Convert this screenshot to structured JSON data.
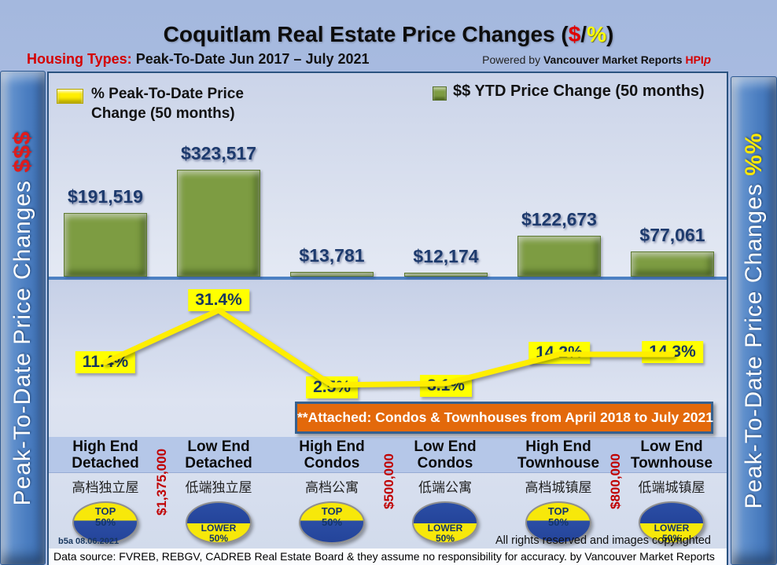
{
  "header": {
    "title_prefix": "Coquitlam Real Estate Price Changes (",
    "title_dollar": "$",
    "title_slash": "/",
    "title_percent": "%",
    "title_suffix": ")",
    "subtitle_label": "Housing Types:",
    "subtitle_text": " Peak-To-Date Jun 2017 – July 2021",
    "powered_prefix": "Powered by ",
    "powered_brand": "Vancouver Market Reports",
    "powered_hpi": "HPI"
  },
  "sidebars": {
    "left_text": "Peak-To-Date Price Changes ",
    "left_suffix": "$$$",
    "right_text": "Peak-To-Date  Price  Changes  ",
    "right_suffix": "%%"
  },
  "legend": {
    "percent_label": "% Peak-To-Date Price Change (50 months)",
    "dollar_label": "$$ YTD Price Change (50 months)"
  },
  "banner": "**Attached: Condos & Townhouses from April 2018 to July 2021",
  "columns": [
    {
      "name_line1": "High End",
      "name_line2": "Detached",
      "name_cn": "高档独立屋",
      "bar_label": "$191,519",
      "pct_label": "11.4%",
      "badge_line1": "TOP",
      "badge_line2": "50%",
      "badge_type": "top"
    },
    {
      "name_line1": "Low End",
      "name_line2": "Detached",
      "name_cn": "低端独立屋",
      "bar_label": "$323,517",
      "pct_label": "31.4%",
      "badge_line1": "LOWER",
      "badge_line2": "50%",
      "badge_type": "lower"
    },
    {
      "name_line1": "High End",
      "name_line2": "Condos",
      "name_cn": "高档公寓",
      "bar_label": "$13,781",
      "pct_label": "2.5%",
      "badge_line1": "TOP",
      "badge_line2": "50%",
      "badge_type": "top"
    },
    {
      "name_line1": "Low End",
      "name_line2": "Condos",
      "name_cn": "低端公寓",
      "bar_label": "$12,174",
      "pct_label": "3.1%",
      "badge_line1": "LOWER",
      "badge_line2": "50%",
      "badge_type": "lower"
    },
    {
      "name_line1": "High End",
      "name_line2": "Townhouse",
      "name_cn": "高档城镇屋",
      "bar_label": "$122,673",
      "pct_label": "14.2%",
      "badge_line1": "TOP",
      "badge_line2": "50%",
      "badge_type": "top"
    },
    {
      "name_line1": "Low End",
      "name_line2": "Townhouse",
      "name_cn": "低端城镇屋",
      "bar_label": "$77,061",
      "pct_label": "14.3%",
      "badge_line1": "LOWER",
      "badge_line2": "50%",
      "badge_type": "lower"
    }
  ],
  "dividers": [
    "$1,375,000",
    "$500,000",
    "$800,000"
  ],
  "footer": {
    "version": "b5a 08.06.2021",
    "rights": "All rights reserved and images copyrighted",
    "datasource": "Data source: FVREB, REBGV, CADREB Real Estate Board & they assume no responsibility for accuracy. by Vancouver Market Reports"
  },
  "colors": {
    "accent_red": "#d40000",
    "accent_yellow": "#ffff00",
    "bar_green": "#7d9c42",
    "sidebar_blue": "#4a7dc0",
    "banner_orange": "#e3690b",
    "badge_blue": "#2b4ea5",
    "value_text_navy": "#1d3a6d"
  },
  "chart_data": {
    "type": "bar",
    "title": "Coquitlam Real Estate Price Changes ($/%)",
    "subtitle": "Housing Types: Peak-To-Date Jun 2017 – July 2021",
    "categories": [
      "High End Detached",
      "Low End Detached",
      "High End Condos",
      "Low End Condos",
      "High End Townhouse",
      "Low End Townhouse"
    ],
    "series": [
      {
        "name": "$$ YTD Price Change (50 months)",
        "type": "bar",
        "unit": "$",
        "color": "#7d9c42",
        "values": [
          191519,
          323517,
          13781,
          12174,
          122673,
          77061
        ],
        "labels": [
          "$191,519",
          "$323,517",
          "$13,781",
          "$12,174",
          "$122,673",
          "$77,061"
        ]
      },
      {
        "name": "% Peak-To-Date Price Change (50 months)",
        "type": "line",
        "unit": "%",
        "color": "#ffff00",
        "values": [
          11.4,
          31.4,
          2.5,
          3.1,
          14.2,
          14.3
        ],
        "labels": [
          "11.4%",
          "31.4%",
          "2.5%",
          "3.1%",
          "14.2%",
          "14.3%"
        ]
      }
    ],
    "annotations": {
      "price_thresholds": [
        "$1,375,000",
        "$500,000",
        "$800,000"
      ],
      "note": "**Attached: Condos & Townhouses from April 2018 to July 2021"
    },
    "legend_position": "top",
    "grid": false
  }
}
